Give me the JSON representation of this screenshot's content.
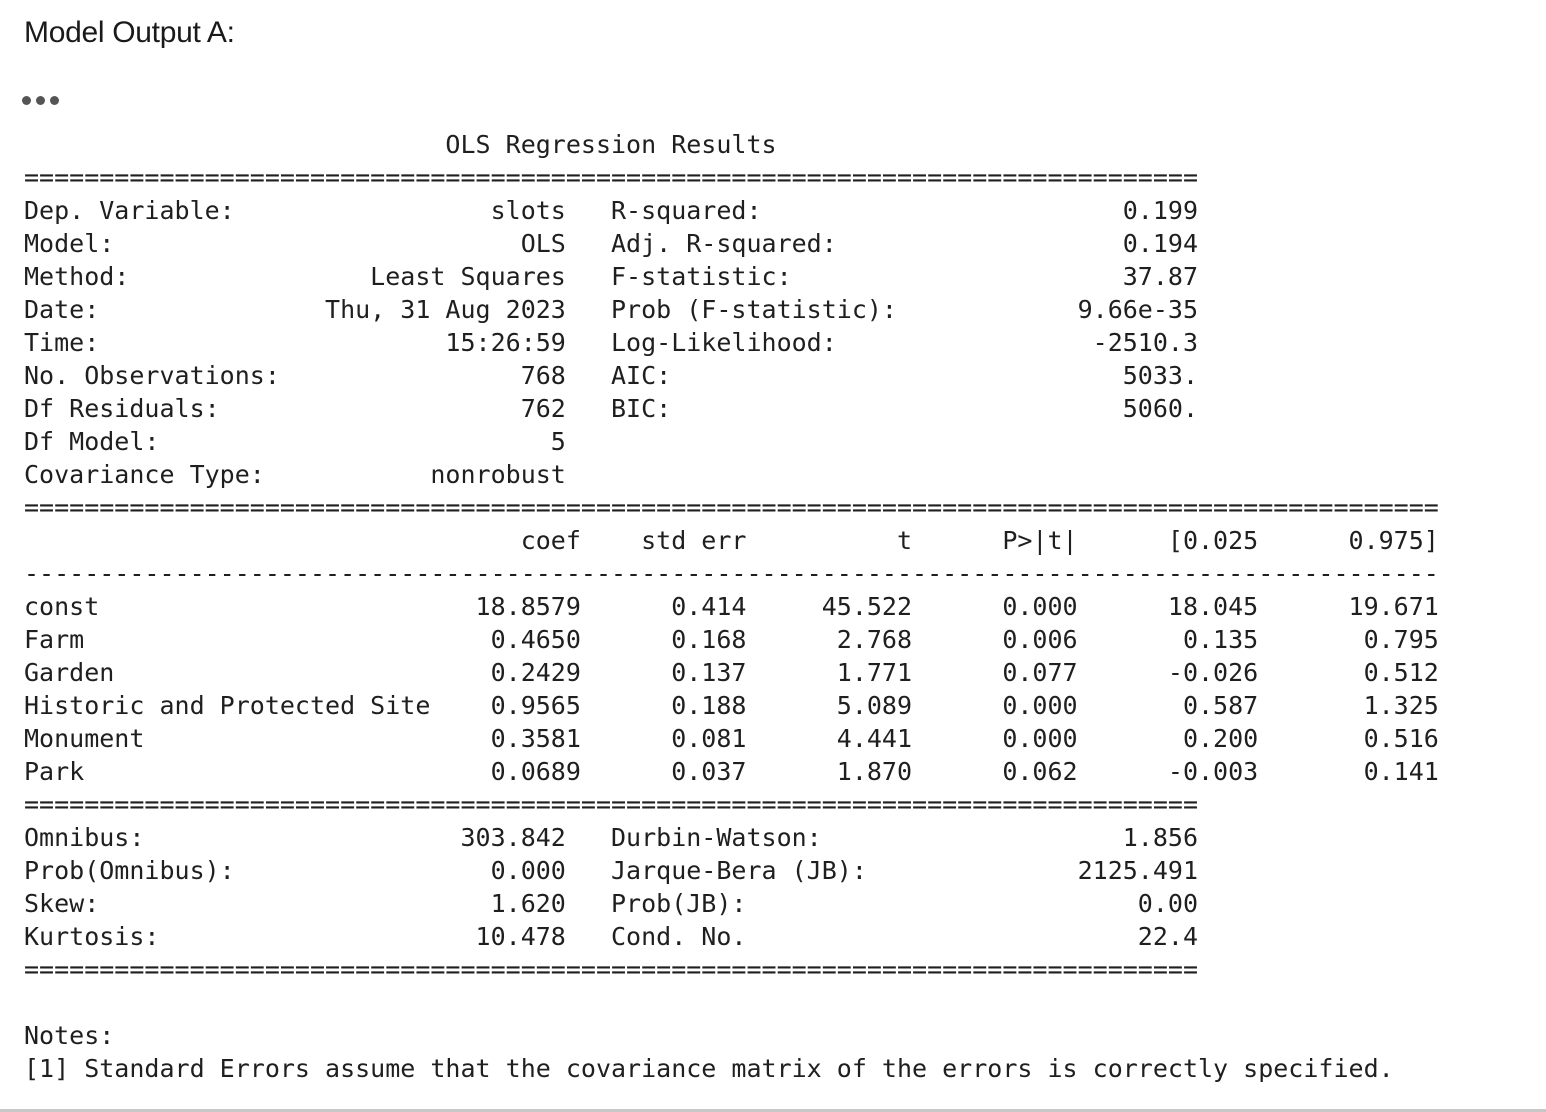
{
  "heading": "Model Output A:",
  "ellipsis_icon": "more-dots-icon",
  "summary": {
    "title": "OLS Regression Results",
    "left_info": [
      {
        "label": "Dep. Variable:",
        "value": "slots"
      },
      {
        "label": "Model:",
        "value": "OLS"
      },
      {
        "label": "Method:",
        "value": "Least Squares"
      },
      {
        "label": "Date:",
        "value": "Thu, 31 Aug 2023"
      },
      {
        "label": "Time:",
        "value": "15:26:59"
      },
      {
        "label": "No. Observations:",
        "value": "768"
      },
      {
        "label": "Df Residuals:",
        "value": "762"
      },
      {
        "label": "Df Model:",
        "value": "5"
      },
      {
        "label": "Covariance Type:",
        "value": "nonrobust"
      }
    ],
    "right_info": [
      {
        "label": "R-squared:",
        "value": "0.199"
      },
      {
        "label": "Adj. R-squared:",
        "value": "0.194"
      },
      {
        "label": "F-statistic:",
        "value": "37.87"
      },
      {
        "label": "Prob (F-statistic):",
        "value": "9.66e-35"
      },
      {
        "label": "Log-Likelihood:",
        "value": "-2510.3"
      },
      {
        "label": "AIC:",
        "value": "5033."
      },
      {
        "label": "BIC:",
        "value": "5060."
      }
    ],
    "coef_headers": [
      "coef",
      "std err",
      "t",
      "P>|t|",
      "[0.025",
      "0.975]"
    ],
    "coef_rows": [
      {
        "name": "const",
        "values": [
          "18.8579",
          "0.414",
          "45.522",
          "0.000",
          "18.045",
          "19.671"
        ]
      },
      {
        "name": "Farm",
        "values": [
          "0.4650",
          "0.168",
          "2.768",
          "0.006",
          "0.135",
          "0.795"
        ]
      },
      {
        "name": "Garden",
        "values": [
          "0.2429",
          "0.137",
          "1.771",
          "0.077",
          "-0.026",
          "0.512"
        ]
      },
      {
        "name": "Historic and Protected Site",
        "values": [
          "0.9565",
          "0.188",
          "5.089",
          "0.000",
          "0.587",
          "1.325"
        ]
      },
      {
        "name": "Monument",
        "values": [
          "0.3581",
          "0.081",
          "4.441",
          "0.000",
          "0.200",
          "0.516"
        ]
      },
      {
        "name": "Park",
        "values": [
          "0.0689",
          "0.037",
          "1.870",
          "0.062",
          "-0.003",
          "0.141"
        ]
      }
    ],
    "diag_left": [
      {
        "label": "Omnibus:",
        "value": "303.842"
      },
      {
        "label": "Prob(Omnibus):",
        "value": "0.000"
      },
      {
        "label": "Skew:",
        "value": "1.620"
      },
      {
        "label": "Kurtosis:",
        "value": "10.478"
      }
    ],
    "diag_right": [
      {
        "label": "Durbin-Watson:",
        "value": "1.856"
      },
      {
        "label": "Jarque-Bera (JB):",
        "value": "2125.491"
      },
      {
        "label": "Prob(JB):",
        "value": "0.00"
      },
      {
        "label": "Cond. No.",
        "value": "22.4"
      }
    ],
    "notes_label": "Notes:",
    "notes": [
      "[1] Standard Errors assume that the covariance matrix of the errors is correctly specified."
    ]
  }
}
